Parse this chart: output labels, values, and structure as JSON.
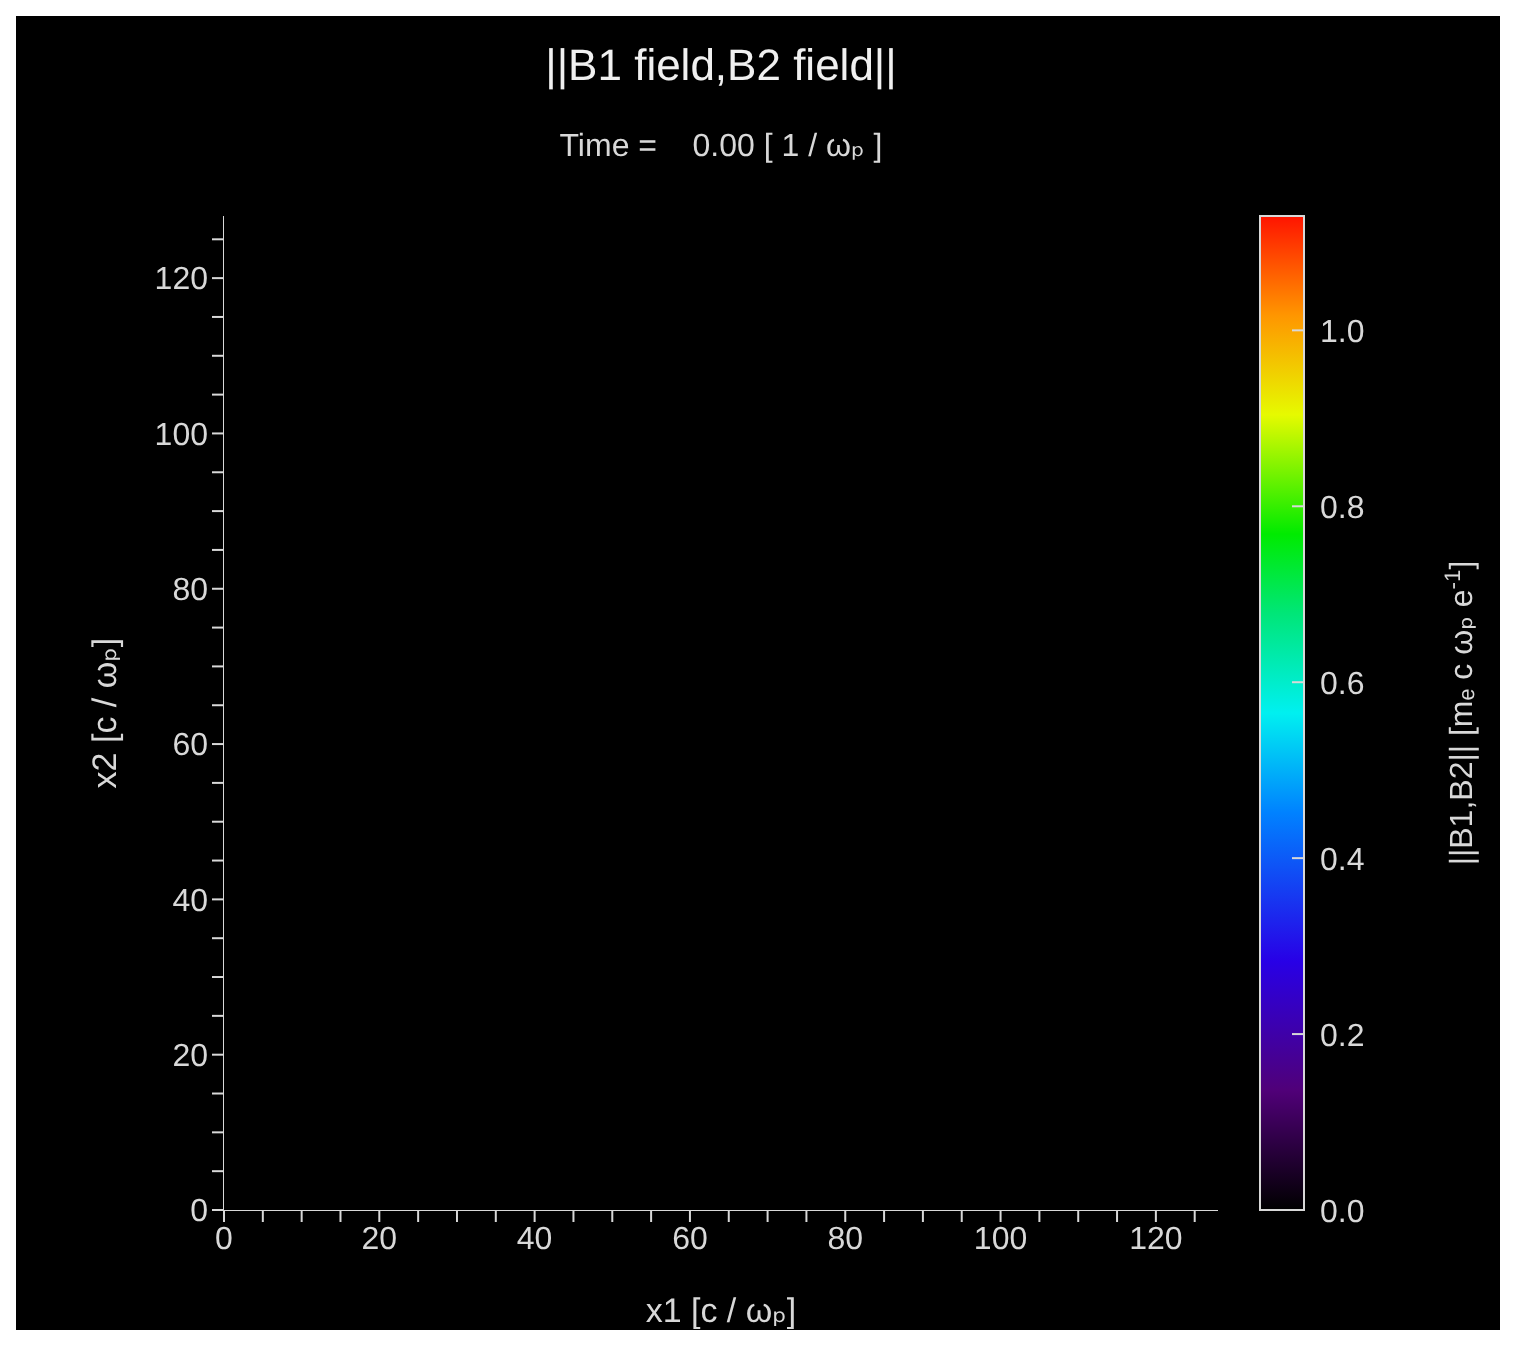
{
  "chart_data": {
    "type": "heatmap",
    "title": "||B1 field,B2 field||",
    "subtitle": "Time =    0.00 [ 1 / ωₚ ]",
    "xlabel": "x1 [c / ωₚ]",
    "ylabel": "x2 [c / ωₚ]",
    "clabel": "||B1,B2|| [mₑ c ωₚ e$^{-1}$]",
    "cells": [
      [
        0
      ]
    ],
    "xlim": [
      0,
      128
    ],
    "ylim": [
      0,
      128
    ],
    "xticks": [
      0,
      {
        "value": 5,
        "label": null
      },
      {
        "value": 10,
        "label": null
      },
      {
        "value": 15,
        "label": null
      },
      20,
      {
        "value": 25,
        "label": null
      },
      {
        "value": 30,
        "label": null
      },
      {
        "value": 35,
        "label": null
      },
      40,
      {
        "value": 45,
        "label": null
      },
      {
        "value": 50,
        "label": null
      },
      {
        "value": 55,
        "label": null
      },
      60,
      {
        "value": 65,
        "label": null
      },
      {
        "value": 70,
        "label": null
      },
      {
        "value": 75,
        "label": null
      },
      80,
      {
        "value": 85,
        "label": null
      },
      {
        "value": 90,
        "label": null
      },
      {
        "value": 95,
        "label": null
      },
      100,
      {
        "value": 105,
        "label": null
      },
      {
        "value": 110,
        "label": null
      },
      {
        "value": 115,
        "label": null
      },
      120,
      {
        "value": 125,
        "label": null
      }
    ],
    "yticks": [
      0,
      {
        "value": 5,
        "label": null
      },
      {
        "value": 10,
        "label": null
      },
      {
        "value": 15,
        "label": null
      },
      20,
      {
        "value": 25,
        "label": null
      },
      {
        "value": 30,
        "label": null
      },
      {
        "value": 35,
        "label": null
      },
      40,
      {
        "value": 45,
        "label": null
      },
      {
        "value": 50,
        "label": null
      },
      {
        "value": 55,
        "label": null
      },
      60,
      {
        "value": 65,
        "label": null
      },
      {
        "value": 70,
        "label": null
      },
      {
        "value": 75,
        "label": null
      },
      80,
      {
        "value": 85,
        "label": null
      },
      {
        "value": 90,
        "label": null
      },
      {
        "value": 95,
        "label": null
      },
      100,
      {
        "value": 105,
        "label": null
      },
      {
        "value": 110,
        "label": null
      },
      {
        "value": 115,
        "label": null
      },
      120,
      {
        "value": 125,
        "label": null
      }
    ],
    "clim": [
      0,
      1.13
    ],
    "cticks": [
      {
        "value": 0,
        "label": "0.0"
      },
      {
        "value": 0.2,
        "label": "0.2"
      },
      {
        "value": 0.4,
        "label": "0.4"
      },
      {
        "value": 0.6,
        "label": "0.6"
      },
      {
        "value": 0.8,
        "label": "0.8"
      },
      {
        "value": 1,
        "label": "1.0"
      }
    ]
  }
}
